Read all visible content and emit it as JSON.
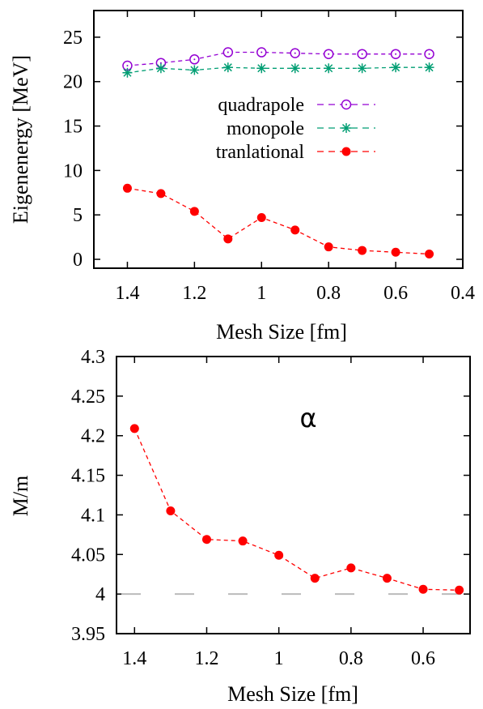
{
  "chart_data": [
    {
      "type": "line",
      "xlabel": "Mesh Size [fm]",
      "ylabel": "Eigenenergy [MeV]",
      "xlim": [
        1.5,
        0.4
      ],
      "ylim": [
        -1,
        28
      ],
      "x_reversed": true,
      "x_ticks": [
        "1.4",
        "1.2",
        "1",
        "0.8",
        "0.6",
        "0.4"
      ],
      "y_ticks": [
        "0",
        "5",
        "10",
        "15",
        "20",
        "25"
      ],
      "legend_position": "center-right",
      "x": [
        1.4,
        1.3,
        1.2,
        1.1,
        1.0,
        0.9,
        0.8,
        0.7,
        0.6,
        0.5
      ],
      "series": [
        {
          "name": "quadrapole",
          "color": "#9400d3",
          "marker": "open-circle",
          "values": [
            21.8,
            22.1,
            22.5,
            23.3,
            23.3,
            23.2,
            23.1,
            23.1,
            23.1,
            23.1
          ]
        },
        {
          "name": "monopole",
          "color": "#009e73",
          "marker": "asterisk",
          "values": [
            21.0,
            21.5,
            21.3,
            21.6,
            21.5,
            21.5,
            21.5,
            21.5,
            21.6,
            21.6
          ]
        },
        {
          "name": "tranlational",
          "color": "#ff0000",
          "marker": "filled-circle",
          "values": [
            8.0,
            7.4,
            5.4,
            2.3,
            4.7,
            3.3,
            1.4,
            1.0,
            0.8,
            0.6
          ]
        }
      ]
    },
    {
      "type": "line",
      "xlabel": "Mesh Size [fm]",
      "ylabel": "M/m",
      "annotation": "α",
      "xlim": [
        1.45,
        0.47
      ],
      "ylim": [
        3.95,
        4.3
      ],
      "x_reversed": true,
      "x_ticks": [
        "1.4",
        "1.2",
        "1",
        "0.8",
        "0.6"
      ],
      "y_ticks": [
        "3.95",
        "4",
        "4.05",
        "4.1",
        "4.15",
        "4.2",
        "4.25",
        "4.3"
      ],
      "reference_line": {
        "y": 4.0,
        "color": "#bbbbbb",
        "style": "dashed"
      },
      "x": [
        1.4,
        1.3,
        1.2,
        1.1,
        1.0,
        0.9,
        0.8,
        0.7,
        0.6,
        0.5
      ],
      "series": [
        {
          "color": "#ff0000",
          "marker": "filled-circle",
          "values": [
            4.209,
            4.105,
            4.069,
            4.067,
            4.049,
            4.02,
            4.033,
            4.02,
            4.006,
            4.005
          ]
        }
      ]
    }
  ]
}
